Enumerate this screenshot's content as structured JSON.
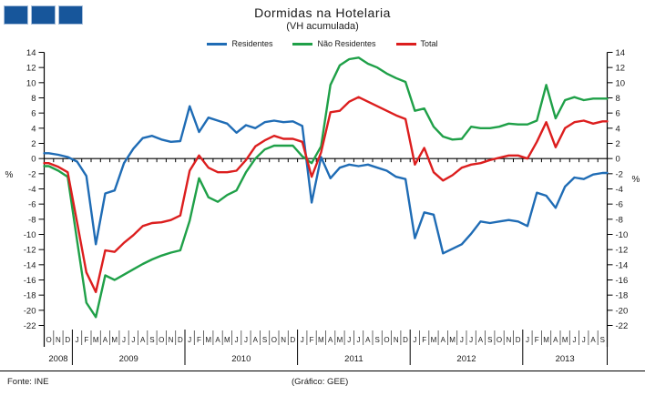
{
  "header": {
    "squares_count": 3,
    "squares_color": "#17569B",
    "squares_border": "#A9C0DC"
  },
  "title": "Dormidas na Hotelaria",
  "subtitle": "(VH acumulada)",
  "legend": [
    {
      "label": "Residentes",
      "color": "#1F6CB5"
    },
    {
      "label": "Não Residentes",
      "color": "#1FA048"
    },
    {
      "label": "Total",
      "color": "#DC1E1E"
    }
  ],
  "footer": {
    "source": "Fonte:  INE",
    "credit": "(Gráfico:  GEE)"
  },
  "chart_data": {
    "type": "line",
    "title": "Dormidas na Hotelaria",
    "subtitle": "(VH acumulada)",
    "ylabel": "%",
    "ylabel_right": "%",
    "ylim": [
      -22,
      14
    ],
    "ytick_step": 2,
    "grid": false,
    "legend_position": "top-center",
    "x_groups": [
      {
        "year": "2008",
        "months": [
          "O",
          "N",
          "D"
        ]
      },
      {
        "year": "2009",
        "months": [
          "J",
          "F",
          "M",
          "A",
          "M",
          "J",
          "J",
          "A",
          "S",
          "O",
          "N",
          "D"
        ]
      },
      {
        "year": "2010",
        "months": [
          "J",
          "F",
          "M",
          "A",
          "M",
          "J",
          "J",
          "A",
          "S",
          "O",
          "N",
          "D"
        ]
      },
      {
        "year": "2011",
        "months": [
          "J",
          "F",
          "M",
          "A",
          "M",
          "J",
          "J",
          "A",
          "S",
          "O",
          "N",
          "D"
        ]
      },
      {
        "year": "2012",
        "months": [
          "J",
          "F",
          "M",
          "A",
          "M",
          "J",
          "J",
          "A",
          "S",
          "O",
          "N",
          "D"
        ]
      },
      {
        "year": "2013",
        "months": [
          "J",
          "F",
          "M",
          "A",
          "M",
          "J",
          "J",
          "A",
          "S"
        ]
      }
    ],
    "series": [
      {
        "name": "Residentes",
        "color": "#1F6CB5",
        "values": [
          0.7,
          0.5,
          0.2,
          -0.4,
          -2.3,
          -11.3,
          -4.6,
          -4.2,
          -0.6,
          1.3,
          2.7,
          3.0,
          2.5,
          2.2,
          2.3,
          6.9,
          3.5,
          5.4,
          5.0,
          4.6,
          3.4,
          4.4,
          4.0,
          4.8,
          5.0,
          4.8,
          4.9,
          4.3,
          -5.8,
          0.2,
          -2.6,
          -1.2,
          -0.8,
          -1.0,
          -0.8,
          -1.2,
          -1.6,
          -2.4,
          -2.7,
          -10.5,
          -7.1,
          -7.4,
          -12.5,
          -11.9,
          -11.3,
          -9.9,
          -8.3,
          -8.5,
          -8.3,
          -8.1,
          -8.3,
          -8.9,
          -4.5,
          -4.9,
          -6.5,
          -3.7,
          -2.5,
          -2.7,
          -2.1,
          -1.9
        ]
      },
      {
        "name": "Não Residentes",
        "color": "#1FA048",
        "values": [
          -1.0,
          -1.6,
          -2.4,
          -10.8,
          -19.0,
          -20.9,
          -15.4,
          -16.0,
          -15.3,
          -14.6,
          -13.9,
          -13.3,
          -12.8,
          -12.4,
          -12.1,
          -8.2,
          -2.6,
          -5.1,
          -5.7,
          -4.8,
          -4.2,
          -1.8,
          0.0,
          1.2,
          1.7,
          1.7,
          1.7,
          0.3,
          -0.6,
          1.6,
          9.7,
          12.3,
          13.1,
          13.3,
          12.5,
          12.0,
          11.2,
          10.6,
          10.1,
          6.3,
          6.6,
          4.2,
          2.9,
          2.5,
          2.6,
          4.2,
          4.0,
          4.0,
          4.2,
          4.6,
          4.5,
          4.5,
          5.0,
          9.7,
          5.3,
          7.7,
          8.1,
          7.7,
          7.9,
          7.9
        ]
      },
      {
        "name": "Total",
        "color": "#DC1E1E",
        "values": [
          -0.6,
          -1.1,
          -1.8,
          -8.4,
          -15.0,
          -17.6,
          -12.1,
          -12.3,
          -11.1,
          -10.1,
          -8.9,
          -8.5,
          -8.4,
          -8.1,
          -7.5,
          -1.6,
          0.4,
          -1.2,
          -1.8,
          -1.8,
          -1.6,
          -0.2,
          1.6,
          2.4,
          3.0,
          2.6,
          2.6,
          2.2,
          -2.4,
          0.8,
          6.1,
          6.3,
          7.5,
          8.1,
          7.5,
          6.9,
          6.3,
          5.7,
          5.2,
          -0.8,
          1.4,
          -1.8,
          -2.9,
          -2.2,
          -1.2,
          -0.8,
          -0.6,
          -0.2,
          0.1,
          0.4,
          0.4,
          0.0,
          2.2,
          4.8,
          1.5,
          4.0,
          4.8,
          5.0,
          4.6,
          4.9
        ]
      }
    ]
  }
}
